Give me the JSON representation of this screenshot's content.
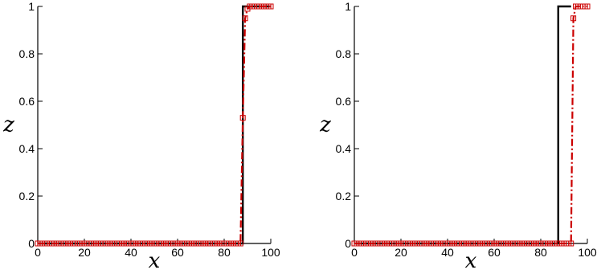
{
  "chart_data": [
    {
      "type": "line",
      "xlabel": "x",
      "ylabel": "z",
      "xlim": [
        0,
        100
      ],
      "ylim": [
        0,
        1
      ],
      "xticks": [
        0,
        20,
        40,
        60,
        80,
        100
      ],
      "yticks": [
        0,
        0.2,
        0.4,
        0.6,
        0.8,
        1
      ],
      "xtick_labels": [
        "0",
        "20",
        "40",
        "60",
        "80",
        "100"
      ],
      "ytick_labels": [
        "0",
        "0.2",
        "0.4",
        "0.6",
        "0.8",
        "1"
      ],
      "grid": false,
      "series": [
        {
          "style": "solid",
          "color": "#000000",
          "x": [
            0,
            88,
            88,
            100
          ],
          "y": [
            0,
            0,
            1,
            1
          ]
        },
        {
          "style": "dash-dot with square markers",
          "color": "#cc0000",
          "x": [
            0,
            1,
            2,
            3,
            4,
            5,
            6,
            7,
            8,
            9,
            10,
            11,
            12,
            13,
            14,
            15,
            16,
            17,
            18,
            19,
            20,
            21,
            22,
            23,
            24,
            25,
            26,
            27,
            28,
            29,
            30,
            31,
            32,
            33,
            34,
            35,
            36,
            37,
            38,
            39,
            40,
            41,
            42,
            43,
            44,
            45,
            46,
            47,
            48,
            49,
            50,
            51,
            52,
            53,
            54,
            55,
            56,
            57,
            58,
            59,
            60,
            61,
            62,
            63,
            64,
            65,
            66,
            67,
            68,
            69,
            70,
            71,
            72,
            73,
            74,
            75,
            76,
            77,
            78,
            79,
            80,
            81,
            82,
            83,
            84,
            85,
            86,
            87,
            88,
            89,
            90,
            91,
            92,
            93,
            94,
            95,
            96,
            97,
            98,
            99,
            100
          ],
          "y": [
            0,
            0,
            0,
            0,
            0,
            0,
            0,
            0,
            0,
            0,
            0,
            0,
            0,
            0,
            0,
            0,
            0,
            0,
            0,
            0,
            0,
            0,
            0,
            0,
            0,
            0,
            0,
            0,
            0,
            0,
            0,
            0,
            0,
            0,
            0,
            0,
            0,
            0,
            0,
            0,
            0,
            0,
            0,
            0,
            0,
            0,
            0,
            0,
            0,
            0,
            0,
            0,
            0,
            0,
            0,
            0,
            0,
            0,
            0,
            0,
            0,
            0,
            0,
            0,
            0,
            0,
            0,
            0,
            0,
            0,
            0,
            0,
            0,
            0,
            0,
            0,
            0,
            0,
            0,
            0,
            0,
            0,
            0,
            0,
            0,
            0,
            0,
            0,
            0.53,
            0.95,
            0.99,
            1,
            1,
            1,
            1,
            1,
            1,
            1,
            1,
            1,
            1
          ]
        }
      ]
    },
    {
      "type": "line",
      "xlabel": "x",
      "ylabel": "z",
      "xlim": [
        0,
        100
      ],
      "ylim": [
        0,
        1
      ],
      "xticks": [
        0,
        20,
        40,
        60,
        80,
        100
      ],
      "yticks": [
        0,
        0.2,
        0.4,
        0.6,
        0.8,
        1
      ],
      "xtick_labels": [
        "0",
        "20",
        "40",
        "60",
        "80",
        "100"
      ],
      "ytick_labels": [
        "0",
        "0.2",
        "0.4",
        "0.6",
        "0.8",
        "1"
      ],
      "grid": false,
      "series": [
        {
          "style": "solid",
          "color": "#000000",
          "x": [
            0,
            87.5,
            87.5,
            93,
            93
          ],
          "y": [
            0,
            0,
            1,
            1,
            1
          ]
        },
        {
          "style": "dash-dot with square markers",
          "color": "#cc0000",
          "x": [
            0,
            1,
            2,
            3,
            4,
            5,
            6,
            7,
            8,
            9,
            10,
            11,
            12,
            13,
            14,
            15,
            16,
            17,
            18,
            19,
            20,
            21,
            22,
            23,
            24,
            25,
            26,
            27,
            28,
            29,
            30,
            31,
            32,
            33,
            34,
            35,
            36,
            37,
            38,
            39,
            40,
            41,
            42,
            43,
            44,
            45,
            46,
            47,
            48,
            49,
            50,
            51,
            52,
            53,
            54,
            55,
            56,
            57,
            58,
            59,
            60,
            61,
            62,
            63,
            64,
            65,
            66,
            67,
            68,
            69,
            70,
            71,
            72,
            73,
            74,
            75,
            76,
            77,
            78,
            79,
            80,
            81,
            82,
            83,
            84,
            85,
            86,
            87,
            88,
            89,
            90,
            91,
            92,
            93,
            94,
            95,
            96,
            97,
            98,
            99,
            100
          ],
          "y": [
            0,
            0,
            0,
            0,
            0,
            0,
            0,
            0,
            0,
            0,
            0,
            0,
            0,
            0,
            0,
            0,
            0,
            0,
            0,
            0,
            0,
            0,
            0,
            0,
            0,
            0,
            0,
            0,
            0,
            0,
            0,
            0,
            0,
            0,
            0,
            0,
            0,
            0,
            0,
            0,
            0,
            0,
            0,
            0,
            0,
            0,
            0,
            0,
            0,
            0,
            0,
            0,
            0,
            0,
            0,
            0,
            0,
            0,
            0,
            0,
            0,
            0,
            0,
            0,
            0,
            0,
            0,
            0,
            0,
            0,
            0,
            0,
            0,
            0,
            0,
            0,
            0,
            0,
            0,
            0,
            0,
            0,
            0,
            0,
            0,
            0,
            0,
            0,
            0,
            0,
            0,
            0,
            0,
            0,
            0.95,
            1,
            1,
            1,
            1,
            1,
            1
          ]
        }
      ]
    }
  ]
}
